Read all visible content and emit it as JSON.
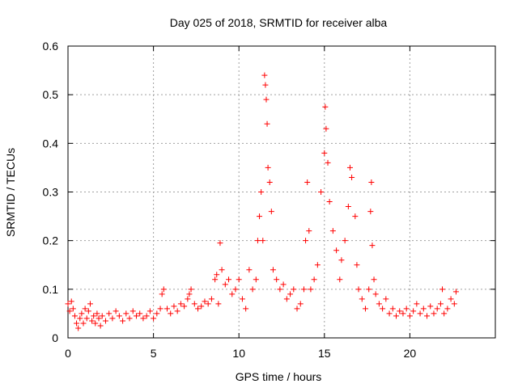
{
  "chart_data": {
    "type": "scatter",
    "title": "Day 025 of 2018, SRMTID for receiver alba",
    "xlabel": "GPS time / hours",
    "ylabel": "SRMTID / TECUs",
    "xlim": [
      0,
      25
    ],
    "ylim": [
      0,
      0.6
    ],
    "xticks": [
      0,
      5,
      10,
      15,
      20
    ],
    "xtick_labels": [
      "0",
      "5",
      "10",
      "15",
      "20"
    ],
    "yticks": [
      0,
      0.1,
      0.2,
      0.3,
      0.4,
      0.5,
      0.6
    ],
    "ytick_labels": [
      "0",
      "0.1",
      "0.2",
      "0.3",
      "0.4",
      "0.5",
      "0.6"
    ],
    "grid": true,
    "marker": "+",
    "marker_color": "#ff0000",
    "series": [
      {
        "name": "SRMTID",
        "points": [
          [
            0.0,
            0.07
          ],
          [
            0.1,
            0.055
          ],
          [
            0.2,
            0.075
          ],
          [
            0.3,
            0.06
          ],
          [
            0.4,
            0.045
          ],
          [
            0.5,
            0.03
          ],
          [
            0.6,
            0.02
          ],
          [
            0.7,
            0.04
          ],
          [
            0.8,
            0.05
          ],
          [
            0.9,
            0.03
          ],
          [
            1.0,
            0.06
          ],
          [
            1.1,
            0.04
          ],
          [
            1.2,
            0.055
          ],
          [
            1.3,
            0.07
          ],
          [
            1.4,
            0.035
          ],
          [
            1.5,
            0.045
          ],
          [
            1.6,
            0.03
          ],
          [
            1.7,
            0.05
          ],
          [
            1.8,
            0.04
          ],
          [
            1.9,
            0.025
          ],
          [
            2.0,
            0.045
          ],
          [
            2.2,
            0.035
          ],
          [
            2.4,
            0.05
          ],
          [
            2.6,
            0.04
          ],
          [
            2.8,
            0.055
          ],
          [
            3.0,
            0.045
          ],
          [
            3.2,
            0.035
          ],
          [
            3.4,
            0.05
          ],
          [
            3.6,
            0.04
          ],
          [
            3.8,
            0.055
          ],
          [
            4.0,
            0.045
          ],
          [
            4.2,
            0.05
          ],
          [
            4.4,
            0.04
          ],
          [
            4.6,
            0.045
          ],
          [
            4.8,
            0.055
          ],
          [
            5.0,
            0.04
          ],
          [
            5.2,
            0.05
          ],
          [
            5.4,
            0.06
          ],
          [
            5.5,
            0.09
          ],
          [
            5.6,
            0.1
          ],
          [
            5.8,
            0.06
          ],
          [
            6.0,
            0.05
          ],
          [
            6.2,
            0.065
          ],
          [
            6.4,
            0.055
          ],
          [
            6.6,
            0.07
          ],
          [
            6.8,
            0.065
          ],
          [
            7.0,
            0.08
          ],
          [
            7.1,
            0.09
          ],
          [
            7.2,
            0.1
          ],
          [
            7.4,
            0.07
          ],
          [
            7.6,
            0.06
          ],
          [
            7.8,
            0.065
          ],
          [
            8.0,
            0.075
          ],
          [
            8.2,
            0.07
          ],
          [
            8.4,
            0.08
          ],
          [
            8.6,
            0.12
          ],
          [
            8.7,
            0.13
          ],
          [
            8.8,
            0.07
          ],
          [
            8.9,
            0.195
          ],
          [
            9.0,
            0.14
          ],
          [
            9.2,
            0.11
          ],
          [
            9.4,
            0.12
          ],
          [
            9.6,
            0.09
          ],
          [
            9.8,
            0.1
          ],
          [
            10.0,
            0.12
          ],
          [
            10.2,
            0.08
          ],
          [
            10.4,
            0.06
          ],
          [
            10.6,
            0.14
          ],
          [
            10.8,
            0.1
          ],
          [
            11.0,
            0.12
          ],
          [
            11.1,
            0.2
          ],
          [
            11.2,
            0.25
          ],
          [
            11.3,
            0.3
          ],
          [
            11.4,
            0.2
          ],
          [
            11.5,
            0.54
          ],
          [
            11.55,
            0.52
          ],
          [
            11.6,
            0.49
          ],
          [
            11.65,
            0.44
          ],
          [
            11.7,
            0.35
          ],
          [
            11.8,
            0.32
          ],
          [
            11.9,
            0.26
          ],
          [
            12.0,
            0.14
          ],
          [
            12.2,
            0.12
          ],
          [
            12.4,
            0.1
          ],
          [
            12.6,
            0.11
          ],
          [
            12.8,
            0.08
          ],
          [
            13.0,
            0.09
          ],
          [
            13.2,
            0.1
          ],
          [
            13.4,
            0.06
          ],
          [
            13.6,
            0.07
          ],
          [
            13.8,
            0.1
          ],
          [
            13.9,
            0.2
          ],
          [
            14.0,
            0.32
          ],
          [
            14.1,
            0.22
          ],
          [
            14.2,
            0.1
          ],
          [
            14.4,
            0.12
          ],
          [
            14.6,
            0.15
          ],
          [
            14.8,
            0.3
          ],
          [
            15.0,
            0.38
          ],
          [
            15.05,
            0.475
          ],
          [
            15.1,
            0.43
          ],
          [
            15.2,
            0.36
          ],
          [
            15.3,
            0.28
          ],
          [
            15.5,
            0.22
          ],
          [
            15.7,
            0.18
          ],
          [
            15.9,
            0.12
          ],
          [
            16.0,
            0.16
          ],
          [
            16.2,
            0.2
          ],
          [
            16.4,
            0.27
          ],
          [
            16.5,
            0.35
          ],
          [
            16.6,
            0.33
          ],
          [
            16.8,
            0.25
          ],
          [
            16.9,
            0.15
          ],
          [
            17.0,
            0.1
          ],
          [
            17.2,
            0.08
          ],
          [
            17.4,
            0.06
          ],
          [
            17.6,
            0.1
          ],
          [
            17.7,
            0.26
          ],
          [
            17.75,
            0.32
          ],
          [
            17.8,
            0.19
          ],
          [
            17.9,
            0.12
          ],
          [
            18.0,
            0.09
          ],
          [
            18.2,
            0.07
          ],
          [
            18.4,
            0.06
          ],
          [
            18.6,
            0.08
          ],
          [
            18.8,
            0.05
          ],
          [
            19.0,
            0.06
          ],
          [
            19.2,
            0.045
          ],
          [
            19.4,
            0.055
          ],
          [
            19.6,
            0.05
          ],
          [
            19.8,
            0.06
          ],
          [
            20.0,
            0.045
          ],
          [
            20.2,
            0.055
          ],
          [
            20.4,
            0.07
          ],
          [
            20.6,
            0.05
          ],
          [
            20.8,
            0.06
          ],
          [
            21.0,
            0.045
          ],
          [
            21.2,
            0.065
          ],
          [
            21.4,
            0.05
          ],
          [
            21.6,
            0.06
          ],
          [
            21.8,
            0.07
          ],
          [
            21.9,
            0.1
          ],
          [
            22.0,
            0.05
          ],
          [
            22.2,
            0.06
          ],
          [
            22.4,
            0.08
          ],
          [
            22.6,
            0.07
          ],
          [
            22.7,
            0.095
          ]
        ]
      }
    ]
  }
}
